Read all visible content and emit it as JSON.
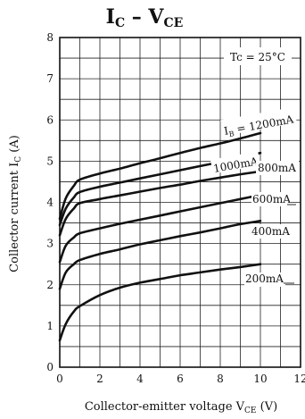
{
  "chart_data": {
    "type": "line",
    "title_main": "I",
    "title_sub": "C",
    "title_dash": " – V",
    "title_sub2": "CE",
    "ylabel": "Collector current I",
    "ylabel_sub": "C",
    "ylabel_unit": " (A)",
    "xlabel": "Collector-emitter voltage V",
    "xlabel_sub": "CE",
    "xlabel_unit": "  (V)",
    "annotation": "Tc = 25°C",
    "xlim": [
      0,
      12
    ],
    "ylim": [
      0,
      8
    ],
    "x_ticks": [
      "0",
      "2",
      "4",
      "6",
      "8",
      "10",
      "12"
    ],
    "y_ticks": [
      "0",
      "1",
      "2",
      "3",
      "4",
      "5",
      "6",
      "7",
      "8"
    ],
    "grid": true,
    "series": [
      {
        "name": "200mA",
        "points": [
          [
            0,
            0.65
          ],
          [
            0.3,
            1.05
          ],
          [
            0.7,
            1.35
          ],
          [
            1,
            1.48
          ],
          [
            2,
            1.75
          ],
          [
            3,
            1.93
          ],
          [
            4,
            2.05
          ],
          [
            5,
            2.14
          ],
          [
            6,
            2.23
          ],
          [
            7,
            2.3
          ],
          [
            8,
            2.37
          ],
          [
            9,
            2.43
          ],
          [
            10,
            2.5
          ]
        ]
      },
      {
        "name": "400mA",
        "points": [
          [
            0,
            1.9
          ],
          [
            0.3,
            2.3
          ],
          [
            0.7,
            2.5
          ],
          [
            1,
            2.6
          ],
          [
            2,
            2.75
          ],
          [
            3,
            2.86
          ],
          [
            4,
            2.98
          ],
          [
            5,
            3.08
          ],
          [
            6,
            3.18
          ],
          [
            7,
            3.27
          ],
          [
            8,
            3.37
          ],
          [
            9,
            3.47
          ],
          [
            10,
            3.55
          ]
        ]
      },
      {
        "name": "600mA",
        "points": [
          [
            0,
            2.55
          ],
          [
            0.3,
            2.95
          ],
          [
            0.7,
            3.15
          ],
          [
            1,
            3.25
          ],
          [
            2,
            3.37
          ],
          [
            3,
            3.48
          ],
          [
            4,
            3.58
          ],
          [
            5,
            3.68
          ],
          [
            6,
            3.78
          ],
          [
            7,
            3.88
          ],
          [
            8,
            3.98
          ],
          [
            9,
            4.08
          ],
          [
            10,
            4.18
          ]
        ]
      },
      {
        "name": "800mA",
        "points": [
          [
            0,
            3.2
          ],
          [
            0.3,
            3.6
          ],
          [
            0.7,
            3.85
          ],
          [
            1,
            3.98
          ],
          [
            2,
            4.08
          ],
          [
            3,
            4.17
          ],
          [
            4,
            4.26
          ],
          [
            5,
            4.35
          ],
          [
            6,
            4.43
          ],
          [
            7,
            4.52
          ],
          [
            8,
            4.6
          ],
          [
            9,
            4.68
          ],
          [
            10,
            4.75
          ]
        ]
      },
      {
        "name": "1000mA",
        "points": [
          [
            0,
            3.45
          ],
          [
            0.3,
            3.85
          ],
          [
            0.7,
            4.12
          ],
          [
            1,
            4.25
          ],
          [
            2,
            4.38
          ],
          [
            3,
            4.48
          ],
          [
            4,
            4.58
          ],
          [
            5,
            4.68
          ],
          [
            6,
            4.78
          ],
          [
            7,
            4.88
          ],
          [
            8,
            4.98
          ],
          [
            9,
            5.08
          ],
          [
            10,
            5.2
          ]
        ]
      },
      {
        "name": "I_B = 1200mA",
        "points": [
          [
            0,
            3.6
          ],
          [
            0.3,
            4.1
          ],
          [
            0.7,
            4.4
          ],
          [
            1,
            4.55
          ],
          [
            2,
            4.7
          ],
          [
            3,
            4.82
          ],
          [
            4,
            4.95
          ],
          [
            5,
            5.07
          ],
          [
            6,
            5.2
          ],
          [
            7,
            5.32
          ],
          [
            8,
            5.43
          ],
          [
            9,
            5.55
          ],
          [
            10,
            5.68
          ]
        ]
      }
    ],
    "curve_labels": {
      "ib_prefix": "I",
      "ib_sub": "B",
      "ib_rest": " = 1200mA",
      "l1000": "1000mA",
      "l800": "800mA",
      "l600": "600mA",
      "l400": "400mA",
      "l200": "200mA"
    }
  }
}
